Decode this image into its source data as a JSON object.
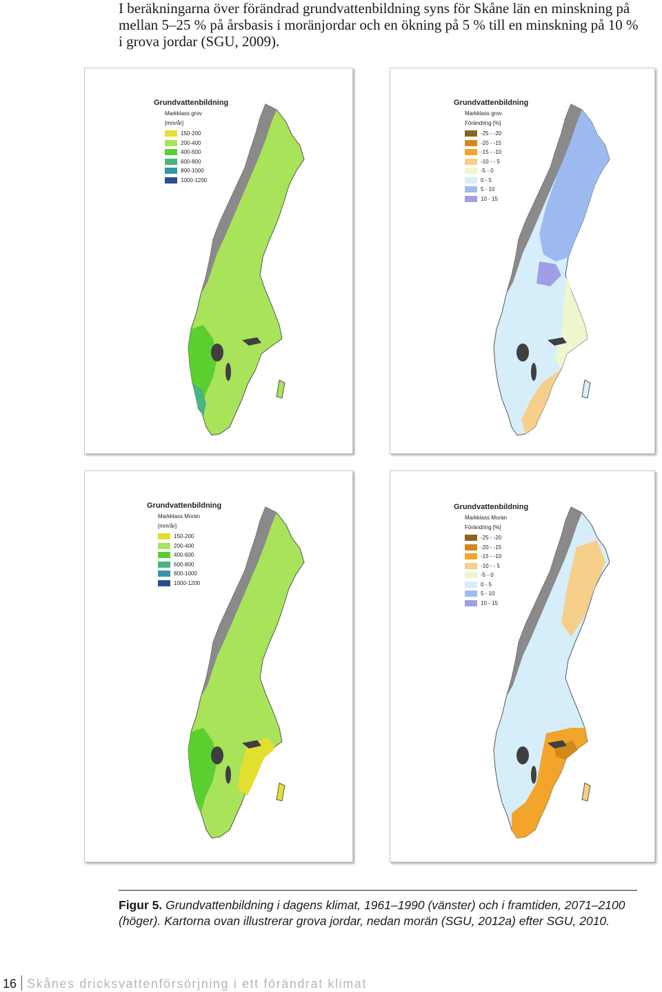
{
  "intro_text": "I beräkningarna över förändrad grundvattenbildning syns för Skåne län en minskning på mellan 5–25 % på årsbasis i moränjordar och en ökning på 5 % till en minskning på 10 % i grova jordar (SGU, 2009).",
  "maps": [
    {
      "id": "grov-dagens",
      "legend_title": "Grundvattenbildning",
      "legend_subtitle": "Markklass grov",
      "legend_unit": "[mm/år]",
      "legend_items": [
        {
          "label": "150-200",
          "color": "#e3df2e"
        },
        {
          "label": "200-400",
          "color": "#a8e35a"
        },
        {
          "label": "400-600",
          "color": "#5ccf30"
        },
        {
          "label": "600-800",
          "color": "#4ab383"
        },
        {
          "label": "800-1000",
          "color": "#3796a6"
        },
        {
          "label": "1000-1200",
          "color": "#2a4f8c"
        }
      ]
    },
    {
      "id": "grov-framtid",
      "legend_title": "Grundvattenbildning",
      "legend_subtitle": "Markklass grov",
      "legend_unit": "Förändring [%]",
      "legend_items": [
        {
          "label": "-25 - -20",
          "color": "#8c6420"
        },
        {
          "label": "-20 - -15",
          "color": "#d08a1c"
        },
        {
          "label": "-15 - -10",
          "color": "#f2a52a"
        },
        {
          "label": "-10 - - 5",
          "color": "#f6cf8a"
        },
        {
          "label": "-5 - 0",
          "color": "#eef5cf"
        },
        {
          "label": "0 - 5",
          "color": "#d5eefa"
        },
        {
          "label": "5 - 10",
          "color": "#9dbaf0"
        },
        {
          "label": "10 - 15",
          "color": "#9f9ee6"
        }
      ]
    },
    {
      "id": "moran-dagens",
      "legend_title": "Grundvattenbildning",
      "legend_subtitle": "Markklass Morän",
      "legend_unit": "[mm/år]",
      "legend_items": [
        {
          "label": "150-200",
          "color": "#e3df2e"
        },
        {
          "label": "200-400",
          "color": "#a8e35a"
        },
        {
          "label": "400-600",
          "color": "#5ccf30"
        },
        {
          "label": "600-800",
          "color": "#4ab383"
        },
        {
          "label": "800-1000",
          "color": "#3796a6"
        },
        {
          "label": "1000-1200",
          "color": "#2a4f8c"
        }
      ]
    },
    {
      "id": "moran-framtid",
      "legend_title": "Grundvattenbildning",
      "legend_subtitle": "Markklass Morän",
      "legend_unit": "Förändring [%]",
      "legend_items": [
        {
          "label": "-25 - -20",
          "color": "#8c6420"
        },
        {
          "label": "-20 - -15",
          "color": "#d08a1c"
        },
        {
          "label": "-15 - -10",
          "color": "#f2a52a"
        },
        {
          "label": "-10 - - 5",
          "color": "#f6cf8a"
        },
        {
          "label": "-5 - 0",
          "color": "#eef5cf"
        },
        {
          "label": "0 - 5",
          "color": "#d5eefa"
        },
        {
          "label": "5 - 10",
          "color": "#9dbaf0"
        },
        {
          "label": "10 - 15",
          "color": "#9f9ee6"
        }
      ]
    }
  ],
  "caption": {
    "label": "Figur 5.",
    "text": "Grundvattenbildning i dagens klimat, 1961–1990 (vänster) och i framtiden, 2071–2100 (höger). Kartorna ovan illustrerar grova jordar, nedan morän (SGU, 2012a) efter SGU, 2010."
  },
  "footer": {
    "page_number": "16",
    "title": "Skånes dricksvattenförsörjning i ett förändrat klimat"
  },
  "colors": {
    "mountain": "#8a8a8a",
    "lake": "#3f3f3f",
    "outline": "#555555"
  }
}
